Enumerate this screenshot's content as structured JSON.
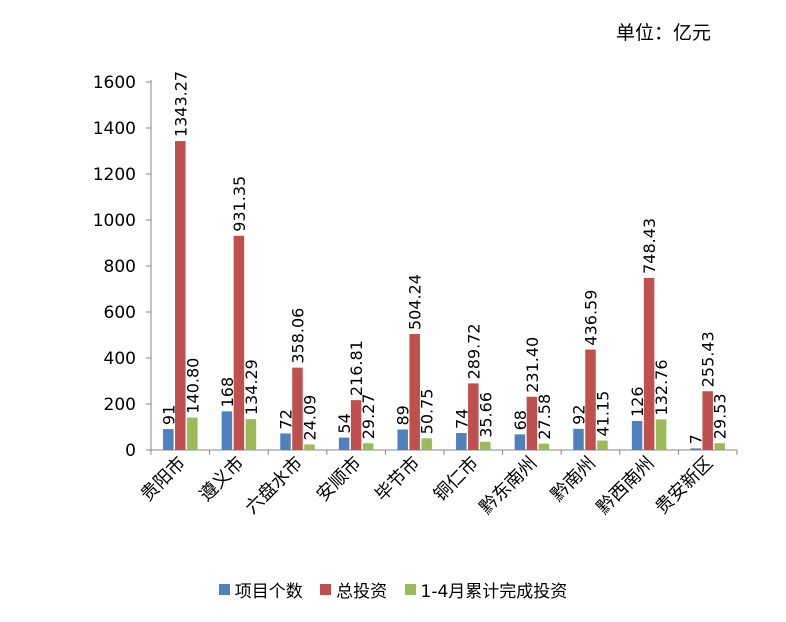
{
  "unit_label": "单位：亿元",
  "chart_data": {
    "type": "bar",
    "categories": [
      "贵阳市",
      "遵义市",
      "六盘水市",
      "安顺市",
      "毕节市",
      "铜仁市",
      "黔东南州",
      "黔南州",
      "黔西南州",
      "贵安新区"
    ],
    "series": [
      {
        "name": "项目个数",
        "color": "#4f81bd",
        "values": [
          91,
          168,
          72,
          54,
          89,
          74,
          68,
          92,
          126,
          7
        ],
        "labels": [
          "91",
          "168",
          "72",
          "54",
          "89",
          "74",
          "68",
          "92",
          "126",
          "7"
        ]
      },
      {
        "name": "总投资",
        "color": "#c0504d",
        "values": [
          1343.27,
          931.35,
          358.06,
          216.81,
          504.24,
          289.72,
          231.4,
          436.59,
          748.43,
          255.43
        ],
        "labels": [
          "1343.27",
          "931.35",
          "358.06",
          "216.81",
          "504.24",
          "289.72",
          "231.40",
          "436.59",
          "748.43",
          "255.43"
        ]
      },
      {
        "name": "1-4月累计完成投资",
        "color": "#9bbb59",
        "values": [
          140.8,
          134.29,
          24.09,
          29.27,
          50.75,
          35.66,
          27.58,
          41.15,
          132.76,
          29.53
        ],
        "labels": [
          "140.80",
          "134.29",
          "24.09",
          "29.27",
          "50.75",
          "35.66",
          "27.58",
          "41.15",
          "132.76",
          "29.53"
        ]
      }
    ],
    "yticks": [
      "0",
      "200",
      "400",
      "600",
      "800",
      "1000",
      "1200",
      "1400",
      "1600"
    ],
    "ylim": [
      0,
      1600
    ],
    "grid": false,
    "legend_position": "bottom"
  }
}
